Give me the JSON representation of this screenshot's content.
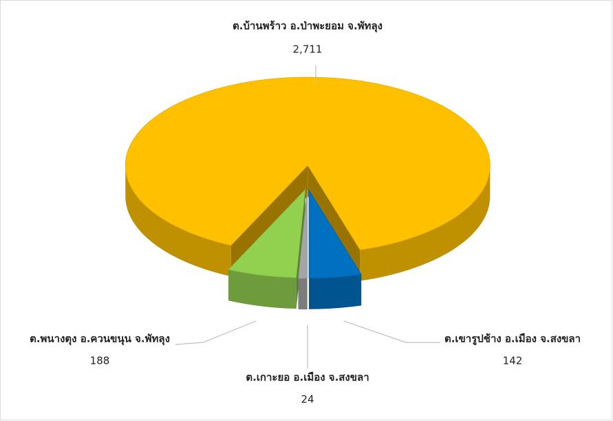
{
  "chart_data": {
    "type": "pie3d",
    "categories": [
      "ต.บ้านพร้าว อ.ป่าพะยอม จ.พัทลุง",
      "ต.เขารูปช้าง อ.เมือง จ.สงขลา",
      "ต.เกาะยอ อ.เมือง จ.สงขลา",
      "ต.พนางตุง อ.ควนขนุน จ.พัทลุง"
    ],
    "values": [
      2711,
      142,
      24,
      188
    ],
    "value_labels": [
      "2,711",
      "142",
      "24",
      "188"
    ],
    "colors": [
      "#ffc000",
      "#0070c0",
      "#a5a5a5",
      "#92d050"
    ]
  }
}
